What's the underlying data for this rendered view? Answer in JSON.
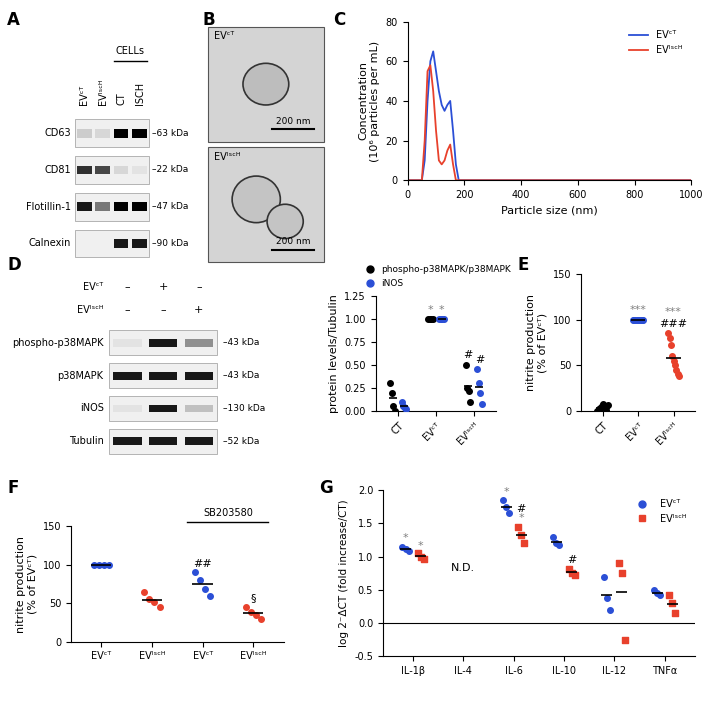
{
  "blots": [
    {
      "panel": "A",
      "lanes": [
        "EVᶜᵀ",
        "EVᴵˢᶜᴴ",
        "CT",
        "ISCH"
      ],
      "group": {
        "text": "CELLs",
        "from": 2,
        "to": 3
      },
      "rows": [
        {
          "name": "CD63",
          "size": "–63 kDa",
          "bands": [
            0.15,
            0.1,
            1.0,
            1.0
          ]
        },
        {
          "name": "CD81",
          "size": "–22 kDa",
          "bands": [
            0.8,
            0.7,
            0.1,
            0.05
          ]
        },
        {
          "name": "Flotillin-1",
          "size": "–47 kDa",
          "bands": [
            0.9,
            0.5,
            1.0,
            1.0
          ]
        },
        {
          "name": "Calnexin",
          "size": "–90 kDa",
          "bands": [
            0.0,
            0.0,
            0.9,
            0.9
          ]
        }
      ]
    },
    {
      "panel": "D",
      "conditions": [
        {
          "name": "EVᶜᵀ",
          "marks": [
            "–",
            "+",
            "–"
          ]
        },
        {
          "name": "EVᴵˢᶜᴴ",
          "marks": [
            "–",
            "–",
            "+"
          ]
        }
      ],
      "rows": [
        {
          "name": "phospho-p38MAPK",
          "size": "–43 kDa",
          "bands": [
            0.05,
            0.9,
            0.4
          ]
        },
        {
          "name": "p38MAPK",
          "size": "–43 kDa",
          "bands": [
            0.9,
            0.9,
            0.9
          ]
        },
        {
          "name": "iNOS",
          "size": "–130 kDa",
          "bands": [
            0.05,
            0.9,
            0.2
          ]
        },
        {
          "name": "Tubulin",
          "size": "–52 kDa",
          "bands": [
            0.9,
            0.9,
            0.9
          ]
        }
      ]
    }
  ],
  "micrographs": {
    "panel": "B",
    "images": [
      {
        "label": "EVᶜᵀ",
        "scale_bar": "200 nm"
      },
      {
        "label": "EVᴵˢᶜᴴ",
        "scale_bar": "200 nm"
      }
    ]
  },
  "chart_data": [
    {
      "panel": "C",
      "type": "line",
      "xlabel": "Particle size (nm)",
      "ylabel": "Concentration\n(10⁶ particles per mL)",
      "xlim": [
        0,
        1000
      ],
      "xticks": [
        0,
        200,
        400,
        600,
        800,
        1000
      ],
      "ylim": [
        0,
        80
      ],
      "yticks": [
        0,
        20,
        40,
        60,
        80
      ],
      "legend": "upper right",
      "series": [
        {
          "name": "EVᶜᵀ",
          "color": "#2b4fd6",
          "x": [
            0,
            50,
            60,
            70,
            80,
            90,
            100,
            110,
            120,
            130,
            140,
            150,
            160,
            170,
            180,
            1000
          ],
          "values": [
            0,
            0,
            10,
            40,
            60,
            65,
            55,
            45,
            38,
            35,
            38,
            40,
            25,
            8,
            0,
            0
          ]
        },
        {
          "name": "EVᴵˢᶜᴴ",
          "color": "#e8412c",
          "x": [
            0,
            50,
            60,
            70,
            80,
            90,
            100,
            110,
            120,
            130,
            140,
            150,
            160,
            170,
            1000
          ],
          "values": [
            0,
            0,
            20,
            55,
            58,
            45,
            25,
            10,
            8,
            10,
            15,
            18,
            8,
            0,
            0
          ]
        }
      ]
    },
    {
      "type": "scatter",
      "ylabel": "protein levels/Tubulin",
      "categories": [
        "CT",
        "EVᶜᵀ",
        "EVᴵˢᶜᴴ"
      ],
      "ylim": [
        0,
        1.25
      ],
      "yticks": [
        {
          "value": 0,
          "label": "0.00"
        },
        {
          "value": 0.25,
          "label": "0.25"
        },
        {
          "value": 0.5,
          "label": "0.50"
        },
        {
          "value": 0.75,
          "label": "0.75"
        },
        {
          "value": 1,
          "label": "1.00"
        },
        {
          "value": 1.25,
          "label": "1.25"
        }
      ],
      "legend": "top",
      "series": [
        {
          "name": "phospho-p38MAPK/p38MAPK",
          "color": "#000000",
          "marker": "circle",
          "values": [
            [
              0.3,
              0.2,
              0.05,
              0.0
            ],
            [
              1,
              1,
              1,
              1
            ],
            [
              0.5,
              0.25,
              0.22,
              0.1
            ]
          ]
        },
        {
          "name": "iNOS",
          "color": "#2b4fd6",
          "marker": "circle",
          "values": [
            [
              0.1,
              0.05,
              0.03,
              0.02
            ],
            [
              1,
              1,
              1,
              1
            ],
            [
              0.45,
              0.3,
              0.2,
              0.08
            ]
          ]
        }
      ],
      "annotations": [
        {
          "text": "*",
          "index": 1,
          "series": 0,
          "y": 1.04
        },
        {
          "text": "*",
          "index": 1,
          "series": 1,
          "y": 1.04
        },
        {
          "text": "#",
          "index": 2,
          "series": 0,
          "y": 0.55
        },
        {
          "text": "#",
          "index": 2,
          "series": 1,
          "y": 0.5
        }
      ]
    },
    {
      "panel": "E",
      "type": "scatter",
      "ylabel": "nitrite production\n(% of EVᶜᵀ)",
      "categories": [
        "CT",
        "EVᶜᵀ",
        "EVᴵˢᶜᴴ"
      ],
      "colors": [
        "#000000",
        "#2b4fd6",
        "#e8412c"
      ],
      "values": [
        [
          0,
          2,
          3,
          5,
          8,
          4,
          1,
          6
        ],
        [
          100,
          100,
          100,
          100,
          100,
          100,
          100,
          100,
          100
        ],
        [
          85,
          80,
          72,
          60,
          55,
          50,
          45,
          40,
          38
        ]
      ],
      "ylim": [
        0,
        150
      ],
      "yticks": [
        0,
        50,
        100,
        150
      ],
      "annotations": [
        {
          "text": "***",
          "index": 1,
          "y": 105
        },
        {
          "text": "***",
          "index": 2,
          "y": 103
        },
        {
          "text": "###",
          "index": 2,
          "y": 90
        }
      ]
    },
    {
      "panel": "F",
      "type": "scatter",
      "ylabel": "nitrite production\n(% of EVᶜᵀ)",
      "categories": [
        "EVᶜᵀ",
        "EVᴵˢᶜᴴ",
        "EVᶜᵀ",
        "EVᴵˢᶜᴴ"
      ],
      "colors": [
        "#2b4fd6",
        "#e8412c",
        "#2b4fd6",
        "#e8412c"
      ],
      "values": [
        [
          100,
          100,
          100,
          100
        ],
        [
          65,
          55,
          52,
          45
        ],
        [
          90,
          80,
          68,
          60
        ],
        [
          45,
          38,
          35,
          30
        ]
      ],
      "ylim": [
        0,
        150
      ],
      "yticks": [
        0,
        50,
        100,
        150
      ],
      "bracket": {
        "text": "SB203580",
        "from": 2,
        "to": 3
      },
      "annotations": [
        {
          "text": "##",
          "index": 2,
          "y": 95
        },
        {
          "text": "§",
          "index": 3,
          "y": 50
        }
      ]
    },
    {
      "panel": "G",
      "type": "scatter",
      "ylabel": "log 2⁻ΔCT (fold increase/CT)",
      "categories": [
        "IL-1β",
        "IL-4",
        "IL-6",
        "IL-10",
        "IL-12",
        "TNFα"
      ],
      "ylim": [
        -0.5,
        2.0
      ],
      "yticks": [
        {
          "value": -0.5,
          "label": "-0.5"
        },
        {
          "value": 0,
          "label": "0.0"
        },
        {
          "value": 0.5,
          "label": "0.5"
        },
        {
          "value": 1,
          "label": "1.0"
        },
        {
          "value": 1.5,
          "label": "1.5"
        },
        {
          "value": 2,
          "label": "2.0"
        }
      ],
      "legend": "upper right",
      "series": [
        {
          "name": "EVᶜᵀ",
          "color": "#2b4fd6",
          "marker": "circle",
          "values": [
            [
              1.15,
              1.12,
              1.08
            ],
            null,
            [
              1.85,
              1.75,
              1.65
            ],
            [
              1.3,
              1.2,
              1.18
            ],
            [
              0.7,
              0.38,
              0.2
            ],
            [
              0.5,
              0.45,
              0.42
            ]
          ]
        },
        {
          "name": "EVᴵˢᶜᴴ",
          "color": "#e8412c",
          "marker": "square",
          "values": [
            [
              1.05,
              1.0,
              0.97
            ],
            null,
            [
              1.45,
              1.32,
              1.2
            ],
            [
              0.82,
              0.75,
              0.72
            ],
            [
              0.9,
              0.75,
              -0.25
            ],
            [
              0.42,
              0.3,
              0.15
            ]
          ]
        }
      ],
      "annotations": [
        {
          "text": "*",
          "index": 0,
          "series": 0,
          "y": 1.2
        },
        {
          "text": "*",
          "index": 0,
          "series": 1,
          "y": 1.08
        },
        {
          "text": "*",
          "index": 2,
          "series": 0,
          "y": 1.9
        },
        {
          "text": "*",
          "index": 2,
          "series": 1,
          "y": 1.5
        },
        {
          "text": "#",
          "index": 2,
          "series": 1,
          "y": 1.64
        },
        {
          "text": "#",
          "index": 3,
          "series": 1,
          "y": 0.88
        },
        {
          "text": "N.D.",
          "index": 1,
          "y": 0.75
        }
      ]
    }
  ]
}
